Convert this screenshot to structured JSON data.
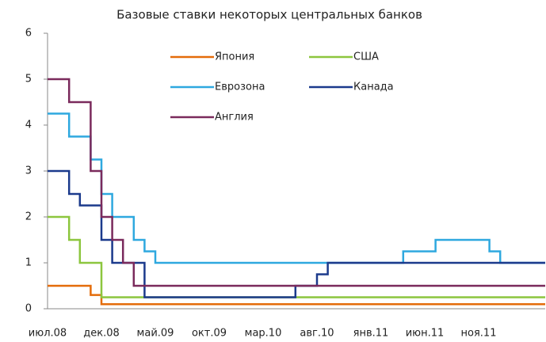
{
  "chart_data": {
    "type": "line",
    "step": true,
    "title": "Базовые ставки некоторых центральных банков",
    "categories": [
      "июл.08",
      null,
      null,
      null,
      null,
      "дек.08",
      null,
      null,
      null,
      null,
      "май.09",
      null,
      null,
      null,
      null,
      "окт.09",
      null,
      null,
      null,
      null,
      "мар.10",
      null,
      null,
      null,
      null,
      "авг.10",
      null,
      null,
      null,
      null,
      "янв.11",
      null,
      null,
      null,
      null,
      "июн.11",
      null,
      null,
      null,
      null,
      "ноя.11",
      null,
      null,
      null,
      null,
      null
    ],
    "series": [
      {
        "name": "Япония",
        "color": "#e46c0a",
        "values": [
          0.5,
          0.5,
          0.5,
          0.5,
          0.3,
          0.1,
          0.1,
          0.1,
          0.1,
          0.1,
          0.1,
          0.1,
          0.1,
          0.1,
          0.1,
          0.1,
          0.1,
          0.1,
          0.1,
          0.1,
          0.1,
          0.1,
          0.1,
          0.1,
          0.1,
          0.1,
          0.1,
          0.1,
          0.1,
          0.1,
          0.1,
          0.1,
          0.1,
          0.1,
          0.1,
          0.1,
          0.1,
          0.1,
          0.1,
          0.1,
          0.1,
          0.1,
          0.1,
          0.1,
          0.1,
          0.1
        ]
      },
      {
        "name": "США",
        "color": "#8cc63e",
        "values": [
          2,
          2,
          1.5,
          1,
          1,
          0.25,
          0.25,
          0.25,
          0.25,
          0.25,
          0.25,
          0.25,
          0.25,
          0.25,
          0.25,
          0.25,
          0.25,
          0.25,
          0.25,
          0.25,
          0.25,
          0.25,
          0.25,
          0.25,
          0.25,
          0.25,
          0.25,
          0.25,
          0.25,
          0.25,
          0.25,
          0.25,
          0.25,
          0.25,
          0.25,
          0.25,
          0.25,
          0.25,
          0.25,
          0.25,
          0.25,
          0.25,
          0.25,
          0.25,
          0.25,
          0.25
        ]
      },
      {
        "name": "Еврозона",
        "color": "#2ea8df",
        "values": [
          4.25,
          4.25,
          3.75,
          3.75,
          3.25,
          2.5,
          2,
          2,
          1.5,
          1.25,
          1,
          1,
          1,
          1,
          1,
          1,
          1,
          1,
          1,
          1,
          1,
          1,
          1,
          1,
          1,
          1,
          1,
          1,
          1,
          1,
          1,
          1,
          1,
          1.25,
          1.25,
          1.25,
          1.5,
          1.5,
          1.5,
          1.5,
          1.5,
          1.25,
          1,
          1,
          1,
          1
        ]
      },
      {
        "name": "Канада",
        "color": "#1b3a8c",
        "values": [
          3,
          3,
          2.5,
          2.25,
          2.25,
          1.5,
          1,
          1,
          1,
          0.25,
          0.25,
          0.25,
          0.25,
          0.25,
          0.25,
          0.25,
          0.25,
          0.25,
          0.25,
          0.25,
          0.25,
          0.25,
          0.25,
          0.5,
          0.5,
          0.75,
          1,
          1,
          1,
          1,
          1,
          1,
          1,
          1,
          1,
          1,
          1,
          1,
          1,
          1,
          1,
          1,
          1,
          1,
          1,
          1
        ]
      },
      {
        "name": "Англия",
        "color": "#7a2a5c",
        "values": [
          5,
          5,
          4.5,
          4.5,
          3,
          2,
          1.5,
          1,
          0.5,
          0.5,
          0.5,
          0.5,
          0.5,
          0.5,
          0.5,
          0.5,
          0.5,
          0.5,
          0.5,
          0.5,
          0.5,
          0.5,
          0.5,
          0.5,
          0.5,
          0.5,
          0.5,
          0.5,
          0.5,
          0.5,
          0.5,
          0.5,
          0.5,
          0.5,
          0.5,
          0.5,
          0.5,
          0.5,
          0.5,
          0.5,
          0.5,
          0.5,
          0.5,
          0.5,
          0.5,
          0.5
        ]
      }
    ],
    "ylim": [
      0,
      6
    ],
    "yticks": [
      0,
      1,
      2,
      3,
      4,
      5,
      6
    ],
    "grid": false,
    "legend": "top-right"
  }
}
